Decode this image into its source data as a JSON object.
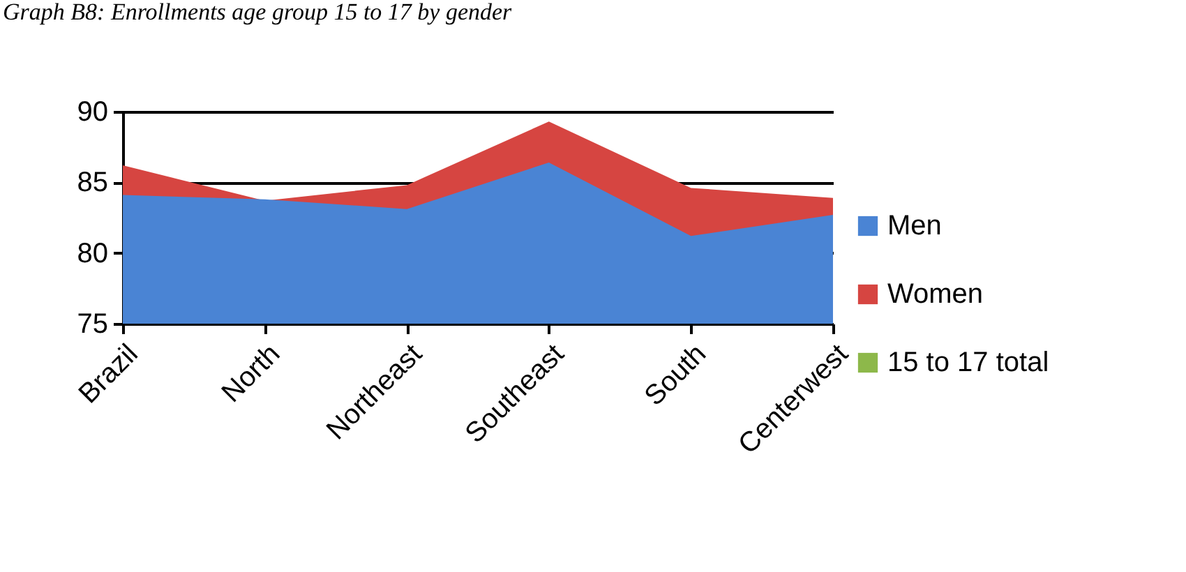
{
  "chart_data": {
    "type": "area",
    "title": "Graph B8: Enrollments age group 15 to 17 by gender",
    "categories": [
      "Brazil",
      "North",
      "Northeast",
      "Southeast",
      "South",
      "Centerwest"
    ],
    "series": [
      {
        "name": "Men",
        "color": "#4a84d4",
        "values": [
          84.1,
          83.8,
          83.1,
          86.4,
          81.2,
          82.7
        ]
      },
      {
        "name": "Women",
        "color": "#d64541",
        "values": [
          86.2,
          83.7,
          84.8,
          89.3,
          84.6,
          83.9
        ]
      },
      {
        "name": "15 to 17 total",
        "color": "#8db84a",
        "values": [
          null,
          null,
          null,
          null,
          null,
          null
        ]
      }
    ],
    "ylim": [
      75,
      90
    ],
    "yticks": [
      75,
      80,
      85,
      90
    ],
    "grid": "y",
    "legend": "right"
  }
}
